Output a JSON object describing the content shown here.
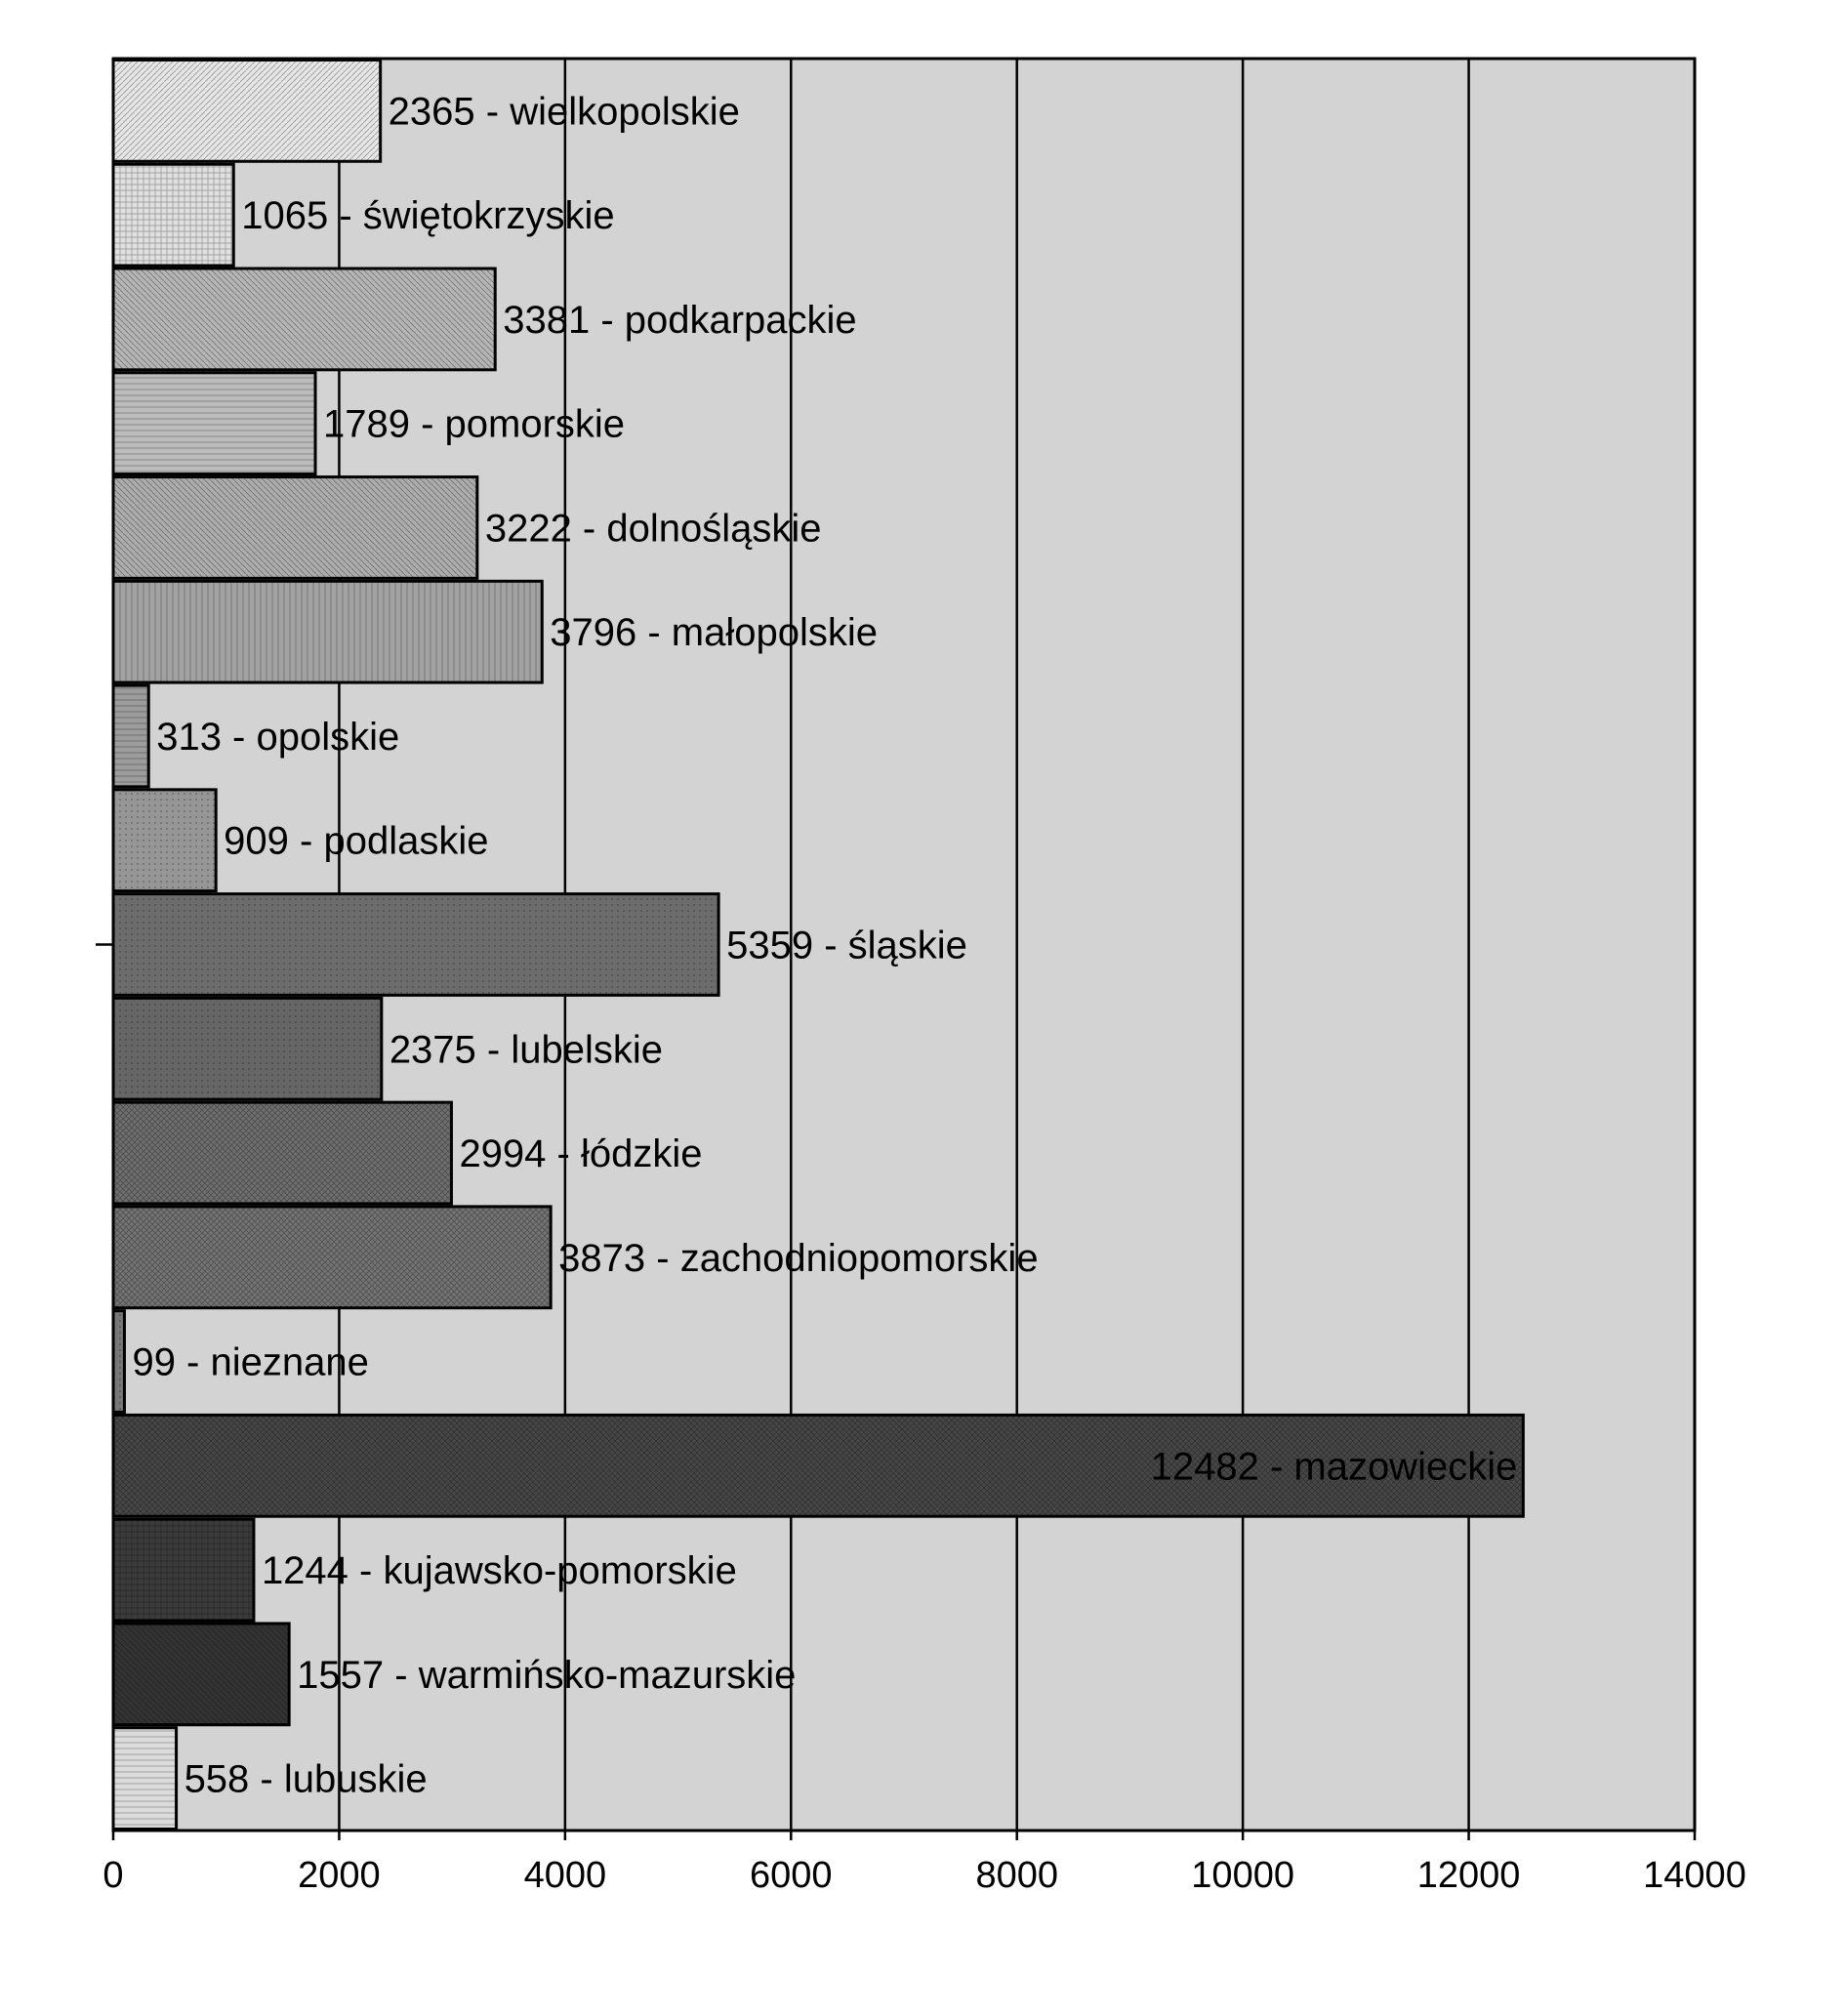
{
  "chart_data": {
    "type": "bar",
    "orientation": "horizontal",
    "title": "",
    "xlabel": "",
    "ylabel": "",
    "xlim": [
      0,
      14000
    ],
    "xticks": [
      0,
      2000,
      4000,
      6000,
      8000,
      10000,
      12000,
      14000
    ],
    "grid": "vertical",
    "background": "#d3d3d3",
    "bars": [
      {
        "value": 2365,
        "label": "2365 - wielkopolskie",
        "fill": "#e6e6e6",
        "pattern": "diag-up"
      },
      {
        "value": 1065,
        "label": "1065 - świętokrzyskie",
        "fill": "#e0e0e0",
        "pattern": "grid"
      },
      {
        "value": 3381,
        "label": "3381 - podkarpackie",
        "fill": "#b5b5b5",
        "pattern": "diag-down"
      },
      {
        "value": 1789,
        "label": "1789 - pomorskie",
        "fill": "#bcbcbc",
        "pattern": "horiz"
      },
      {
        "value": 3222,
        "label": "3222 - dolnośląskie",
        "fill": "#acacac",
        "pattern": "diag-down"
      },
      {
        "value": 3796,
        "label": "3796 - małopolskie",
        "fill": "#a2a2a2",
        "pattern": "vert"
      },
      {
        "value": 313,
        "label": "313 - opolskie",
        "fill": "#9c9c9c",
        "pattern": "horiz"
      },
      {
        "value": 909,
        "label": "909 - podlaskie",
        "fill": "#969696",
        "pattern": "dots"
      },
      {
        "value": 5359,
        "label": "5359 - śląskie",
        "fill": "#6c6c6c",
        "pattern": "dots"
      },
      {
        "value": 2375,
        "label": "2375 - lubelskie",
        "fill": "#666666",
        "pattern": "dots"
      },
      {
        "value": 2994,
        "label": "2994 - łódzkie",
        "fill": "#6e6e6e",
        "pattern": "cross"
      },
      {
        "value": 3873,
        "label": "3873 - zachodniopomorskie",
        "fill": "#737373",
        "pattern": "cross"
      },
      {
        "value": 99,
        "label": "99 -    nieznane",
        "fill": "#777777",
        "pattern": "dots"
      },
      {
        "value": 12482,
        "label": "12482 - mazowieckie",
        "fill": "#474747",
        "pattern": "cross",
        "label_inside": true
      },
      {
        "value": 1244,
        "label": "1244 - kujawsko-pomorskie",
        "fill": "#3b3b3b",
        "pattern": "grid"
      },
      {
        "value": 1557,
        "label": "1557 - warmińsko-mazurskie",
        "fill": "#333333",
        "pattern": "diag-down"
      },
      {
        "value": 558,
        "label": "558 - lubuskie",
        "fill": "#dcdcdc",
        "pattern": "horiz"
      }
    ]
  }
}
